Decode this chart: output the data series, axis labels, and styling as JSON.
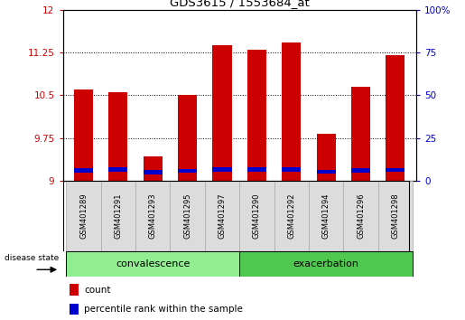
{
  "title": "GDS3615 / 1553684_at",
  "samples": [
    "GSM401289",
    "GSM401291",
    "GSM401293",
    "GSM401295",
    "GSM401297",
    "GSM401290",
    "GSM401292",
    "GSM401294",
    "GSM401296",
    "GSM401298"
  ],
  "red_heights": [
    10.6,
    10.55,
    9.42,
    10.5,
    11.38,
    11.3,
    11.42,
    9.82,
    10.65,
    11.2
  ],
  "blue_values": [
    9.18,
    9.2,
    9.15,
    9.17,
    9.2,
    9.2,
    9.2,
    9.16,
    9.18,
    9.19
  ],
  "ymin": 9.0,
  "ymax": 12.0,
  "yticks": [
    9.0,
    9.75,
    10.5,
    11.25,
    12.0
  ],
  "ytick_labels": [
    "9",
    "9.75",
    "10.5",
    "11.25",
    "12"
  ],
  "y2min": 0,
  "y2max": 100,
  "y2ticks": [
    0,
    25,
    50,
    75,
    100
  ],
  "y2tick_labels": [
    "0",
    "25",
    "50",
    "75",
    "100%"
  ],
  "groups": [
    {
      "label": "convalescence",
      "start": 0,
      "end": 5
    },
    {
      "label": "exacerbation",
      "start": 5,
      "end": 10
    }
  ],
  "bar_color_red": "#CC0000",
  "bar_color_blue": "#0000CC",
  "bar_width": 0.55,
  "background_color": "#ffffff",
  "tick_label_color_left": "#CC0000",
  "tick_label_color_right": "#0000CC",
  "legend_count_label": "count",
  "legend_pct_label": "percentile rank within the sample",
  "disease_state_label": "disease state",
  "subplot_bg": "#DCDCDC",
  "group_color_light": "#90EE90",
  "group_color_dark": "#50C850"
}
